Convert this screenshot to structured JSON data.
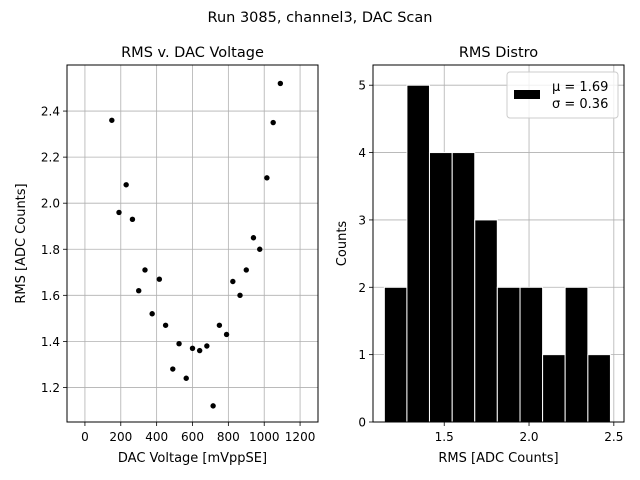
{
  "figure": {
    "suptitle": "Run 3085, channel3, DAC Scan"
  },
  "chart_data": [
    {
      "type": "scatter",
      "title": "RMS v. DAC Voltage",
      "xlabel": "DAC Voltage [mVppSE]",
      "ylabel": "RMS [ADC Counts]",
      "xlim": [
        -100,
        1300
      ],
      "ylim": [
        1.05,
        2.6
      ],
      "xticks": [
        0,
        200,
        400,
        600,
        800,
        1000,
        1200
      ],
      "yticks": [
        1.2,
        1.4,
        1.6,
        1.8,
        2.0,
        2.2,
        2.4
      ],
      "xtick_labels": [
        "0",
        "200",
        "400",
        "600",
        "800",
        "1000",
        "1200"
      ],
      "ytick_labels": [
        "1.2",
        "1.4",
        "1.6",
        "1.8",
        "2.0",
        "2.2",
        "2.4"
      ],
      "grid": true,
      "marker_color": "#000000",
      "points": [
        {
          "x": 150,
          "y": 2.36
        },
        {
          "x": 190,
          "y": 1.96
        },
        {
          "x": 230,
          "y": 2.08
        },
        {
          "x": 265,
          "y": 1.93
        },
        {
          "x": 300,
          "y": 1.62
        },
        {
          "x": 335,
          "y": 1.71
        },
        {
          "x": 375,
          "y": 1.52
        },
        {
          "x": 415,
          "y": 1.67
        },
        {
          "x": 450,
          "y": 1.47
        },
        {
          "x": 490,
          "y": 1.28
        },
        {
          "x": 525,
          "y": 1.39
        },
        {
          "x": 565,
          "y": 1.24
        },
        {
          "x": 600,
          "y": 1.37
        },
        {
          "x": 640,
          "y": 1.36
        },
        {
          "x": 680,
          "y": 1.38
        },
        {
          "x": 715,
          "y": 1.12
        },
        {
          "x": 750,
          "y": 1.47
        },
        {
          "x": 790,
          "y": 1.43
        },
        {
          "x": 825,
          "y": 1.66
        },
        {
          "x": 865,
          "y": 1.6
        },
        {
          "x": 900,
          "y": 1.71
        },
        {
          "x": 940,
          "y": 1.85
        },
        {
          "x": 975,
          "y": 1.8
        },
        {
          "x": 1015,
          "y": 2.11
        },
        {
          "x": 1050,
          "y": 2.35
        },
        {
          "x": 1090,
          "y": 2.52
        }
      ]
    },
    {
      "type": "bar",
      "title": "RMS Distro",
      "xlabel": "RMS [ADC Counts]",
      "ylabel": "Counts",
      "xlim": [
        1.08,
        2.56
      ],
      "ylim": [
        0,
        5.3
      ],
      "xticks": [
        1.5,
        2.0,
        2.5
      ],
      "yticks": [
        0,
        1,
        2,
        3,
        4,
        5
      ],
      "xtick_labels": [
        "1.5",
        "2.0",
        "2.5"
      ],
      "ytick_labels": [
        "0",
        "1",
        "2",
        "3",
        "4",
        "5"
      ],
      "grid": true,
      "bar_color": "#000000",
      "bar_edge_color": "#ffffff",
      "bins": [
        {
          "x0": 1.147,
          "x1": 1.28,
          "count": 2
        },
        {
          "x0": 1.28,
          "x1": 1.413,
          "count": 5
        },
        {
          "x0": 1.413,
          "x1": 1.547,
          "count": 4
        },
        {
          "x0": 1.547,
          "x1": 1.68,
          "count": 4
        },
        {
          "x0": 1.68,
          "x1": 1.813,
          "count": 3
        },
        {
          "x0": 1.813,
          "x1": 1.947,
          "count": 2
        },
        {
          "x0": 1.947,
          "x1": 2.08,
          "count": 2
        },
        {
          "x0": 2.08,
          "x1": 2.213,
          "count": 1
        },
        {
          "x0": 2.213,
          "x1": 2.347,
          "count": 2
        },
        {
          "x0": 2.347,
          "x1": 2.48,
          "count": 1
        }
      ],
      "legend": {
        "placement": "top-right",
        "line1": "μ = 1.69",
        "line2": "σ = 0.36"
      }
    }
  ]
}
